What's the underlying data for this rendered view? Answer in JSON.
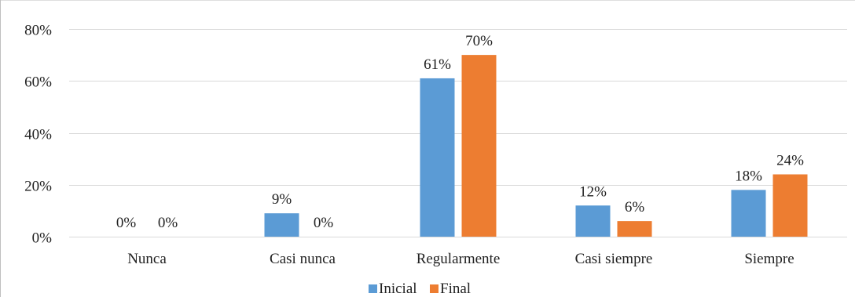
{
  "chart_data": {
    "type": "bar",
    "categories": [
      "Nunca",
      "Casi nunca",
      "Regularmente",
      "Casi siempre",
      "Siempre"
    ],
    "series": [
      {
        "name": "Inicial",
        "values": [
          0,
          9,
          61,
          12,
          18
        ],
        "labels": [
          "0%",
          "9%",
          "61%",
          "12%",
          "18%"
        ],
        "color": "#5b9bd5"
      },
      {
        "name": "Final",
        "values": [
          0,
          0,
          70,
          6,
          24
        ],
        "labels": [
          "0%",
          "0%",
          "70%",
          "6%",
          "24%"
        ],
        "color": "#ed7d31"
      }
    ],
    "y_ticks": [
      0,
      20,
      40,
      60,
      80
    ],
    "y_tick_labels": [
      "0%",
      "20%",
      "40%",
      "60%",
      "80%"
    ],
    "ylim": [
      0,
      80
    ],
    "grid": true,
    "legend_position": "bottom",
    "xlabel": "",
    "ylabel": ""
  },
  "colors": {
    "gridline": "#d9d9d9",
    "frame": "#bfbfbf"
  }
}
